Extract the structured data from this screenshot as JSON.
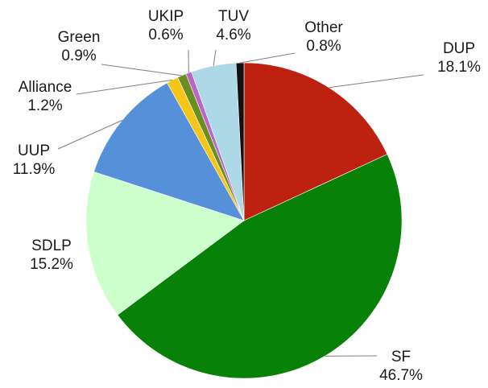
{
  "chart_data": {
    "type": "pie",
    "title": "",
    "start": "12 o'clock",
    "direction": "clockwise",
    "slices": [
      {
        "label": "DUP",
        "value": 18.1,
        "display": "18.1%",
        "color": "#bd2110"
      },
      {
        "label": "SF",
        "value": 46.7,
        "display": "46.7%",
        "color": "#078107"
      },
      {
        "label": "SDLP",
        "value": 15.2,
        "display": "15.2%",
        "color": "#ccffcc"
      },
      {
        "label": "UUP",
        "value": 11.9,
        "display": "11.9%",
        "color": "#5590d9"
      },
      {
        "label": "Alliance",
        "value": 1.2,
        "display": "1.2%",
        "color": "#f5c518"
      },
      {
        "label": "Green",
        "value": 0.9,
        "display": "0.9%",
        "color": "#6b8e23"
      },
      {
        "label": "UKIP",
        "value": 0.6,
        "display": "0.6%",
        "color": "#b966c8"
      },
      {
        "label": "TUV",
        "value": 4.6,
        "display": "4.6%",
        "color": "#add8e6"
      },
      {
        "label": "Other",
        "value": 0.8,
        "display": "0.8%",
        "color": "#111111"
      }
    ]
  }
}
